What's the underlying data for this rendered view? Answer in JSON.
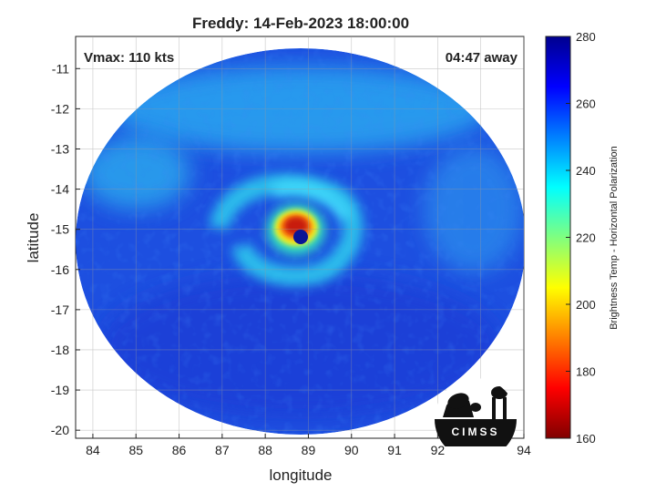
{
  "title": "Freddy: 14-Feb-2023 18:00:00",
  "annotations": {
    "vmax": "Vmax: 110 kts",
    "time_away": "04:47 away"
  },
  "axes": {
    "xlabel": "longitude",
    "ylabel": "latitude",
    "xlim": [
      83.6,
      94
    ],
    "ylim": [
      -20.2,
      -10.2
    ],
    "xticks": [
      "84",
      "85",
      "86",
      "87",
      "88",
      "89",
      "90",
      "91",
      "92",
      "93",
      "94"
    ],
    "yticks": [
      "-11",
      "-12",
      "-13",
      "-14",
      "-15",
      "-16",
      "-17",
      "-18",
      "-19",
      "-20"
    ],
    "grid": true
  },
  "colorbar": {
    "label": "Brightness Temp - Horizontal Polarization",
    "range": [
      160,
      280
    ],
    "ticks": [
      "280",
      "260",
      "240",
      "220",
      "200",
      "180",
      "160"
    ],
    "colormap": "jet"
  },
  "logo": {
    "text": "CIMSS"
  },
  "colors": {
    "background_cool": "#1e50e6",
    "ring_cyan": "#28c8e6",
    "eyewall_red": "#c81e0a",
    "eye_blue": "#0a1496"
  },
  "chart_data": {
    "type": "heatmap",
    "title": "Freddy: 14-Feb-2023 18:00:00",
    "xlabel": "longitude",
    "ylabel": "latitude",
    "xlim": [
      83.6,
      94
    ],
    "ylim": [
      -20.2,
      -10.2
    ],
    "storm_center": [
      88.8,
      -15.2
    ],
    "value_range": [
      160,
      280
    ],
    "value_label": "Brightness Temp - Horizontal Polarization"
  }
}
